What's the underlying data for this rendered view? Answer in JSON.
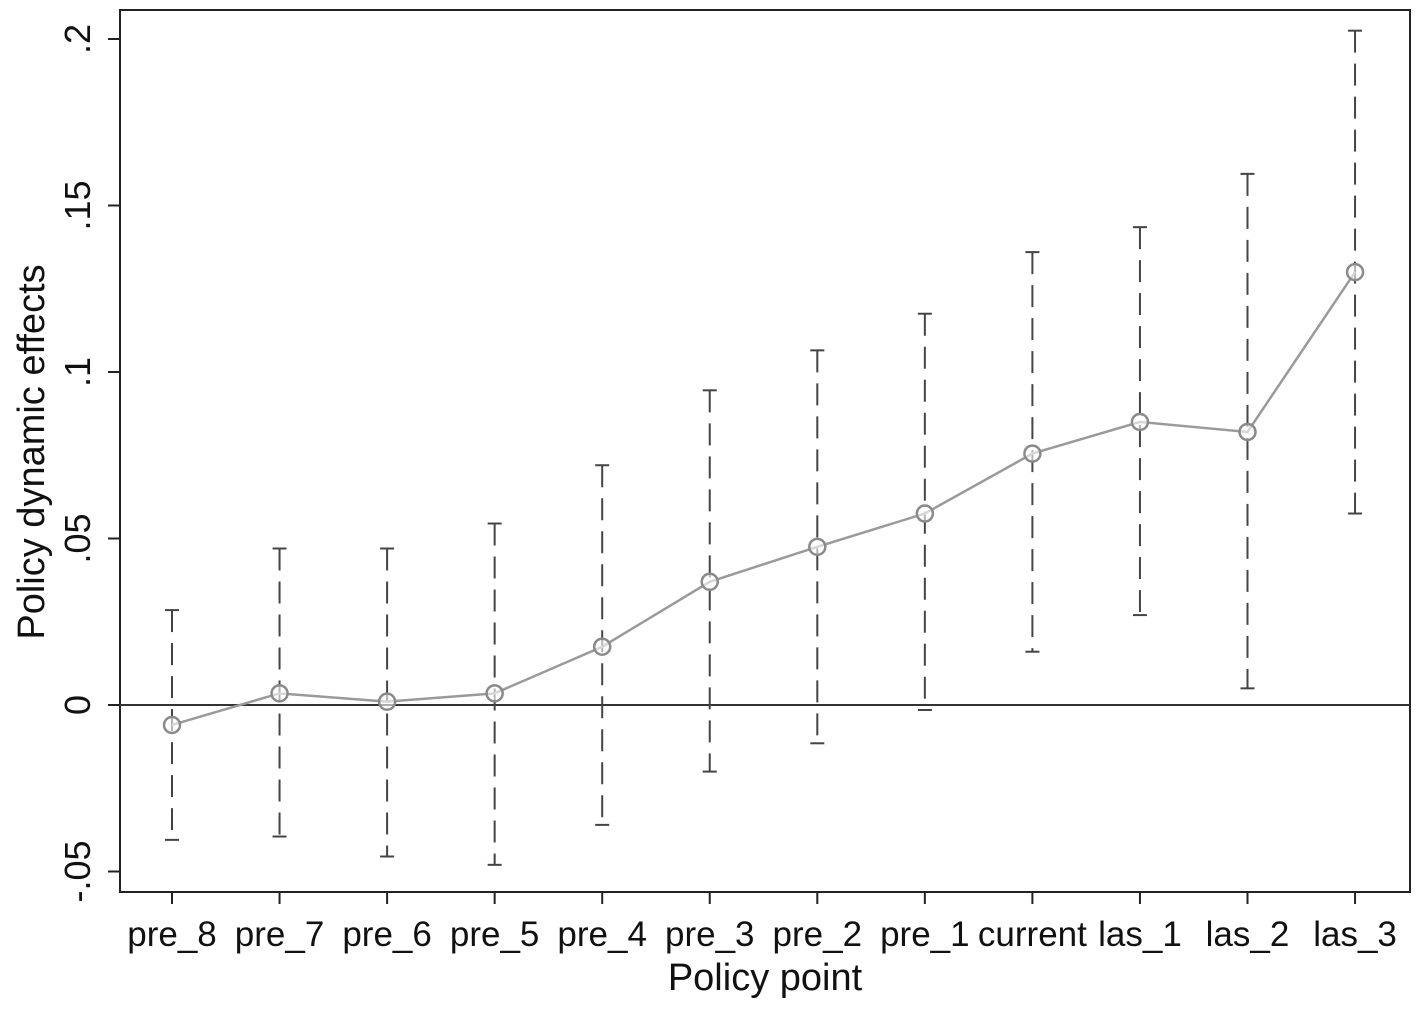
{
  "chart_data": {
    "type": "line",
    "title": "",
    "xlabel": "Policy point",
    "ylabel": "Policy dynamic effects",
    "categories": [
      "pre_8",
      "pre_7",
      "pre_6",
      "pre_5",
      "pre_4",
      "pre_3",
      "pre_2",
      "pre_1",
      "current",
      "las_1",
      "las_2",
      "las_3"
    ],
    "series": [
      {
        "values": [
          -0.006,
          0.0035,
          0.001,
          0.0035,
          0.0175,
          0.037,
          0.0475,
          0.0575,
          0.0755,
          0.085,
          0.082,
          0.13
        ],
        "ci_lower": [
          -0.0405,
          -0.0395,
          -0.0455,
          -0.048,
          -0.036,
          -0.02,
          -0.0115,
          -0.0015,
          0.016,
          0.027,
          0.005,
          0.0575
        ],
        "ci_upper": [
          0.0285,
          0.047,
          0.047,
          0.0545,
          0.072,
          0.0945,
          0.1065,
          0.1175,
          0.136,
          0.1435,
          0.1595,
          0.2025
        ]
      }
    ],
    "yticks": [
      -0.05,
      0,
      0.05,
      0.1,
      0.15,
      0.2
    ],
    "ytick_labels": [
      "-.05",
      "0",
      ".05",
      ".1",
      ".15",
      ".2"
    ],
    "ylim": [
      -0.057,
      0.21
    ],
    "reference_line_y": 0,
    "grid": false,
    "legend": "none",
    "colors": {
      "series_line": "#9a9a9a",
      "marker": "#8a8a8a",
      "ci": "#444444",
      "axis": "#222222"
    }
  }
}
